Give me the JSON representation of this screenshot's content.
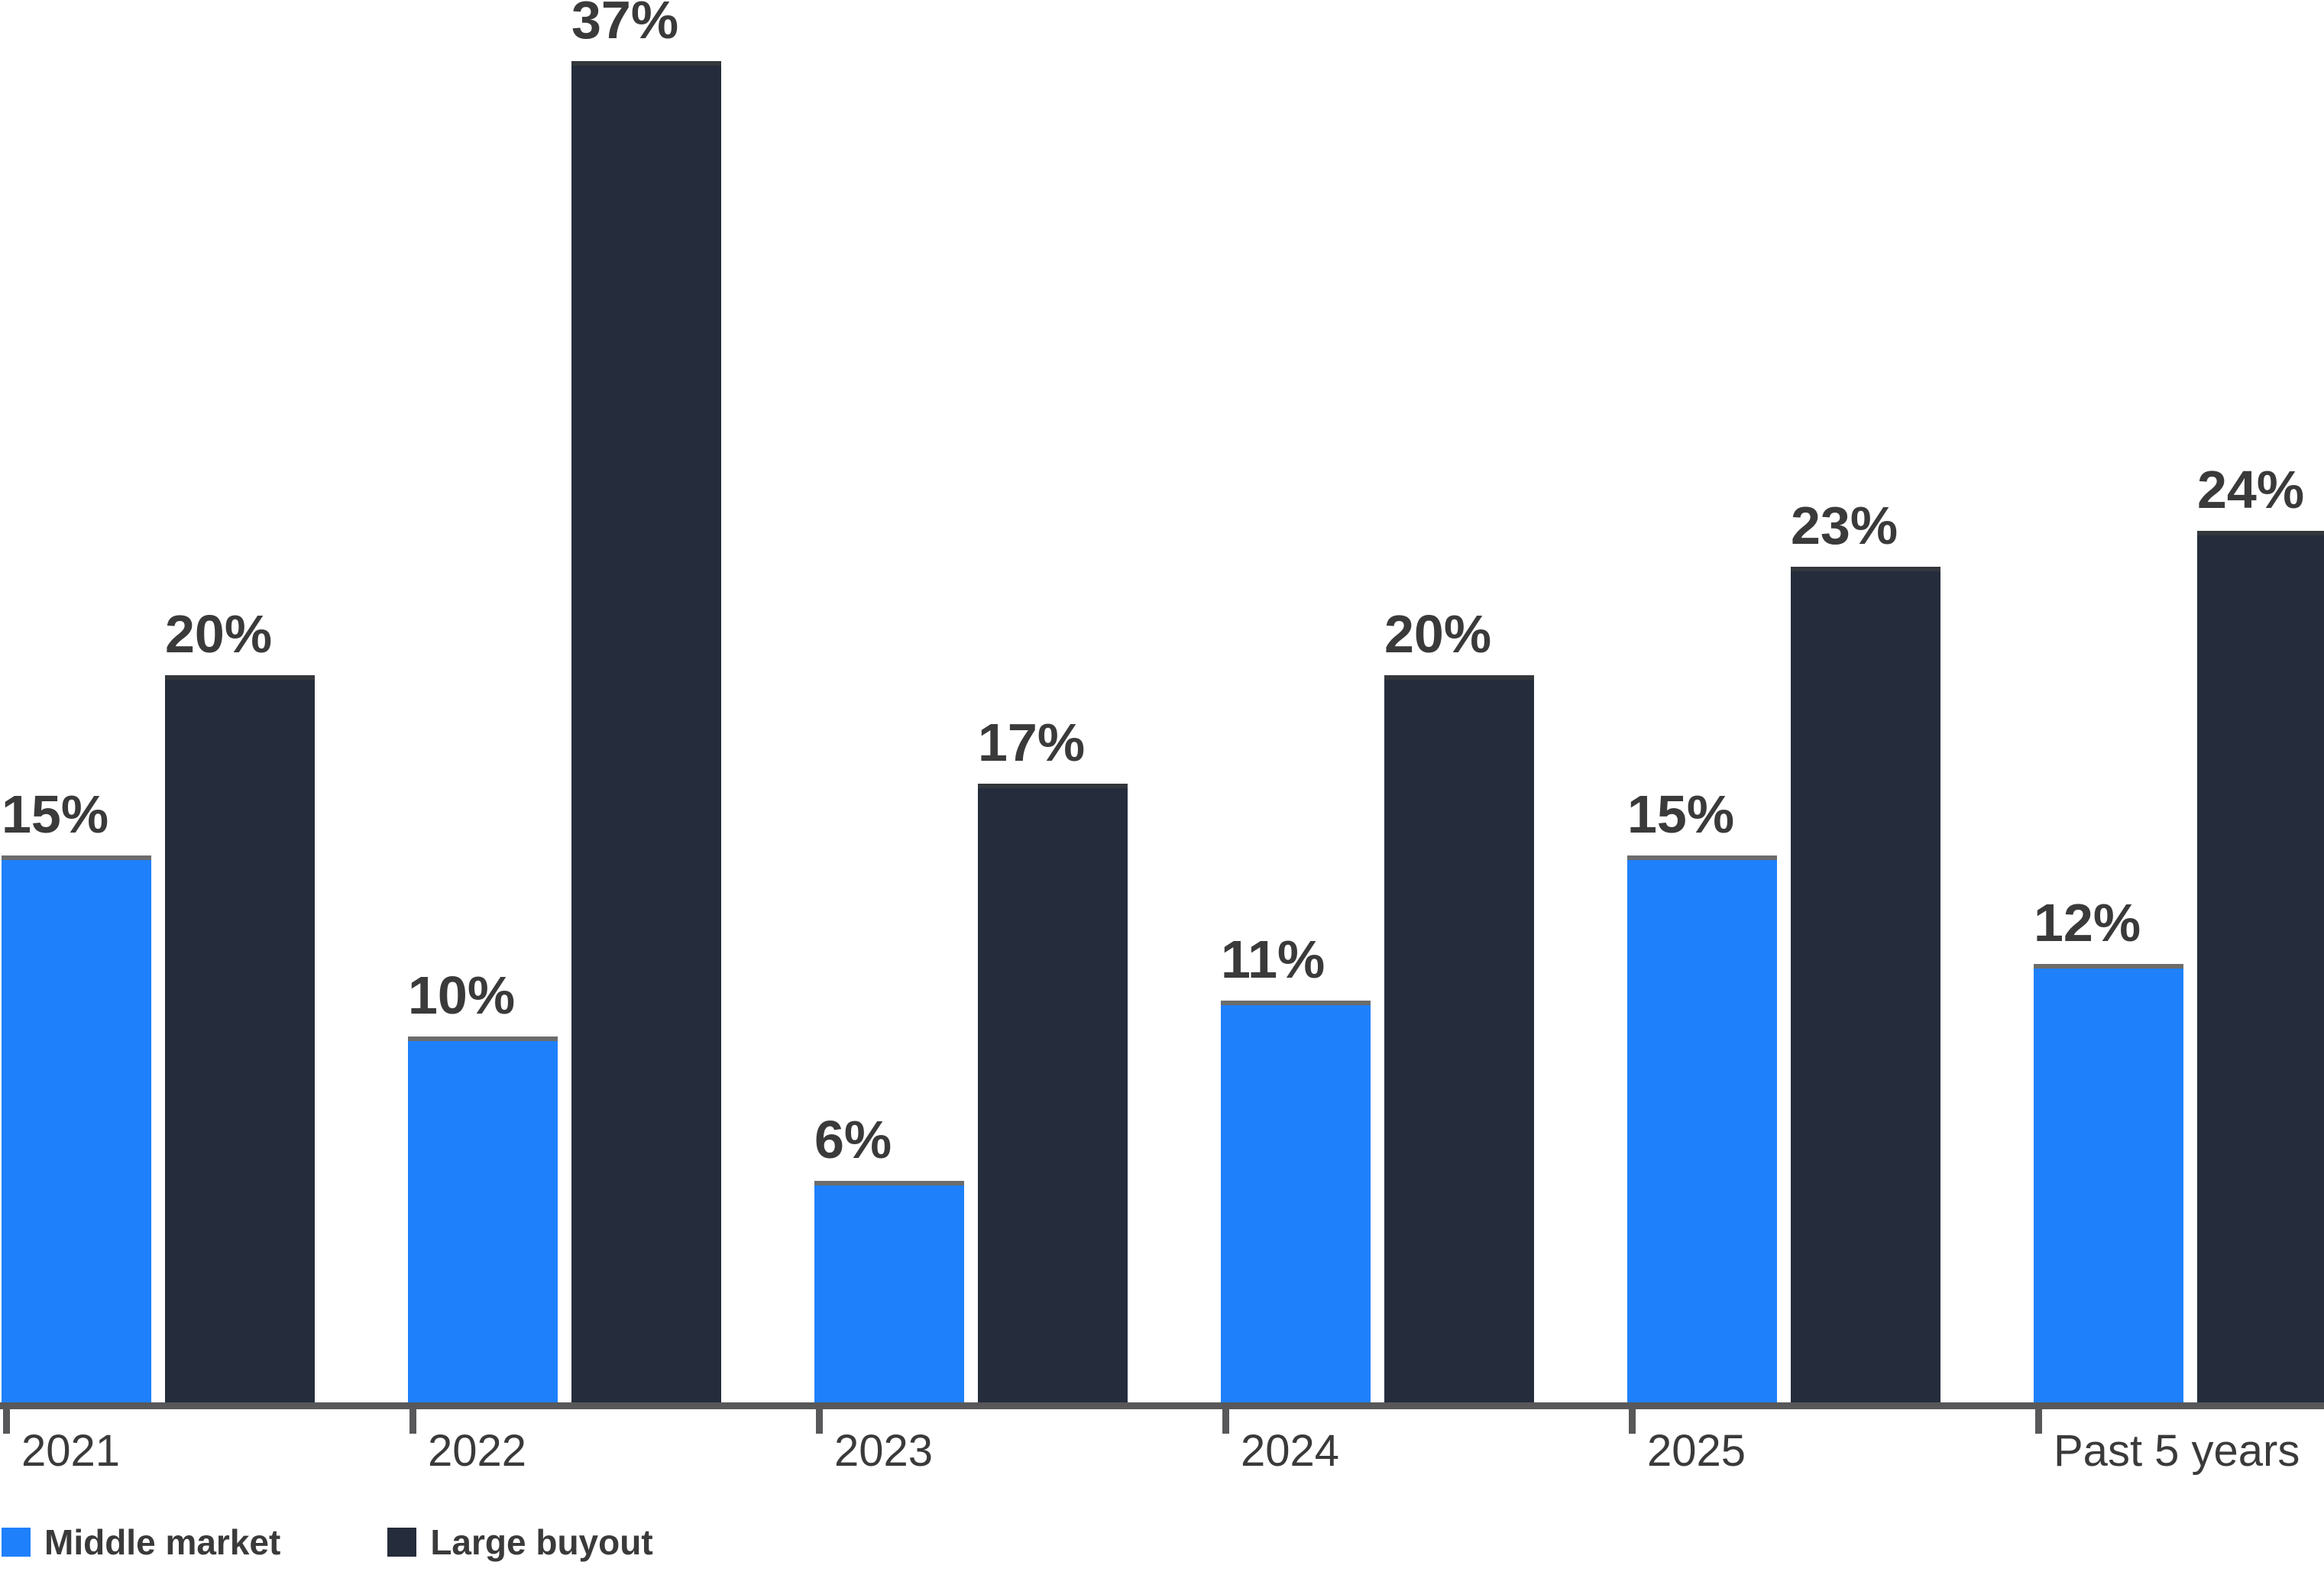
{
  "chart_data": {
    "type": "bar",
    "title": "",
    "xlabel": "",
    "ylabel": "",
    "categories": [
      "2021",
      "2022",
      "2023",
      "2024",
      "2025",
      "Past 5 years"
    ],
    "series": [
      {
        "name": "Middle market",
        "values": [
          15,
          10,
          6,
          11,
          15,
          12
        ],
        "value_labels": [
          "15%",
          "10%",
          "6%",
          "11%",
          "15%",
          "12%"
        ]
      },
      {
        "name": "Large buyout",
        "values": [
          20,
          37,
          17,
          20,
          23,
          24
        ],
        "value_labels": [
          "20%",
          "37%",
          "17%",
          "20%",
          "23%",
          "24%"
        ]
      }
    ],
    "ylim": [
      0,
      38
    ],
    "grid": false,
    "value_labels_shown": true,
    "legend_position": "bottom-left"
  },
  "legend": {
    "items": [
      {
        "label": "Middle market",
        "color": "#1F80FC"
      },
      {
        "label": "Large buyout",
        "color": "#252C3C"
      }
    ]
  },
  "colors": {
    "middle_market_bar": "#1F80FC",
    "middle_market_bar_top_edge": "#6C6C6C",
    "large_buyout_bar": "#252C3C",
    "large_buyout_bar_top_edge": "#33373B",
    "axis_line": "#58585A",
    "tick": "#58585A",
    "label_text": "#3A3A3A",
    "background": "#FFFFFF"
  }
}
